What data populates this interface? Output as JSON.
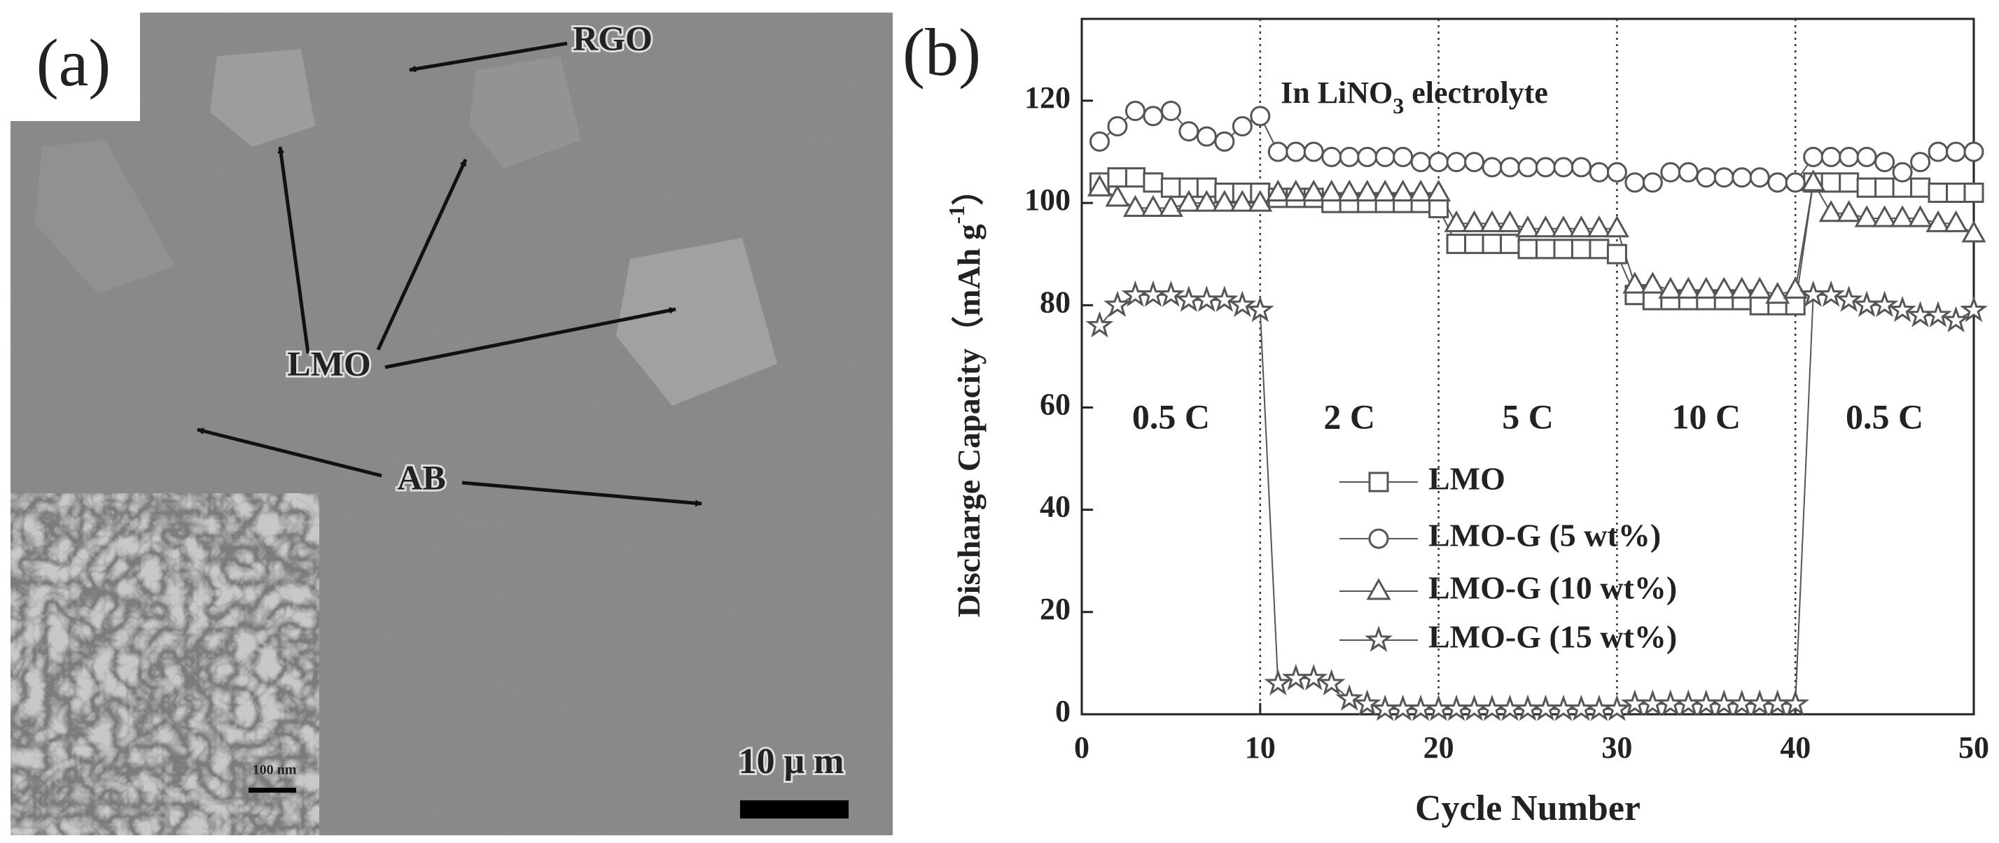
{
  "image_panel": {
    "panel_label": "(a)",
    "labels": [
      "RGO",
      "LMO",
      "AB"
    ],
    "scale_bar": "10 μ m",
    "inset_scale_bar": "100 nm"
  },
  "chart_data": {
    "type": "line",
    "panel_label": "(b)",
    "annotation_parts": [
      "In LiNO",
      "3",
      " electrolyte"
    ],
    "y_label_parts": [
      "Discharge Capacity（mAh g",
      "-1",
      "）"
    ],
    "x_label": "Cycle Number",
    "x": [
      1,
      2,
      3,
      4,
      5,
      6,
      7,
      8,
      9,
      10,
      11,
      12,
      13,
      14,
      15,
      16,
      17,
      18,
      19,
      20,
      21,
      22,
      23,
      24,
      25,
      26,
      27,
      28,
      29,
      30,
      31,
      32,
      33,
      34,
      35,
      36,
      37,
      38,
      39,
      40,
      41,
      42,
      43,
      44,
      45,
      46,
      47,
      48,
      49,
      50
    ],
    "series": [
      {
        "name": "LMO",
        "color": "#555555",
        "marker": "square",
        "values": [
          104,
          105,
          105,
          104,
          103,
          103,
          103,
          102,
          102,
          102,
          101,
          101,
          101,
          100,
          100,
          100,
          100,
          100,
          100,
          99,
          92,
          92,
          92,
          92,
          91,
          91,
          91,
          91,
          91,
          90,
          82,
          81,
          81,
          81,
          81,
          81,
          81,
          80,
          80,
          80,
          104,
          104,
          104,
          103,
          103,
          103,
          103,
          102,
          102,
          102
        ]
      },
      {
        "name": "LMO-G  (5 wt%)",
        "color": "#555555",
        "marker": "circle",
        "values": [
          112,
          115,
          118,
          117,
          118,
          114,
          113,
          112,
          115,
          117,
          110,
          110,
          110,
          109,
          109,
          109,
          109,
          109,
          108,
          108,
          108,
          108,
          107,
          107,
          107,
          107,
          107,
          107,
          106,
          106,
          104,
          104,
          106,
          106,
          105,
          105,
          105,
          105,
          104,
          104,
          109,
          109,
          109,
          109,
          108,
          106,
          108,
          110,
          110,
          110
        ]
      },
      {
        "name": "LMO-G (10 wt%)",
        "color": "#555555",
        "marker": "triangle",
        "values": [
          103,
          101,
          99,
          99,
          99,
          100,
          100,
          100,
          100,
          100,
          102,
          102,
          102,
          102,
          102,
          102,
          102,
          102,
          102,
          102,
          96,
          96,
          96,
          96,
          95,
          95,
          95,
          95,
          95,
          95,
          84,
          84,
          83,
          83,
          83,
          83,
          83,
          83,
          82,
          83,
          104,
          98,
          98,
          97,
          97,
          97,
          97,
          96,
          96,
          94
        ]
      },
      {
        "name": "LMO-G (15 wt%)",
        "color": "#555555",
        "marker": "star",
        "values": [
          76,
          80,
          82,
          82,
          82,
          81,
          81,
          81,
          80,
          79,
          6,
          7,
          7,
          6,
          3,
          2,
          1,
          1,
          1,
          1,
          1,
          1,
          1,
          1,
          1,
          1,
          1,
          1,
          1,
          1,
          2,
          2,
          2,
          2,
          2,
          2,
          2,
          2,
          2,
          2,
          82,
          82,
          81,
          80,
          80,
          79,
          78,
          78,
          77,
          79
        ]
      }
    ],
    "separators": [
      10,
      20,
      30,
      40
    ],
    "rate_labels": [
      "0.5 C",
      "2 C",
      "5 C",
      "10 C",
      "0.5 C"
    ],
    "xlim": [
      0,
      50
    ],
    "xticks": [
      0,
      10,
      20,
      30,
      40,
      50
    ],
    "ylim": [
      0,
      136
    ],
    "yticks": [
      0,
      20,
      40,
      60,
      80,
      100,
      120
    ]
  }
}
